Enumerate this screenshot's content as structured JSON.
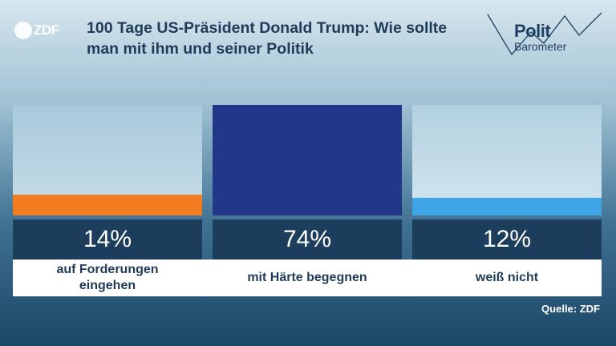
{
  "logo": {
    "text": "ZDF"
  },
  "header": {
    "title": "100 Tage US-Präsident Donald Trump: Wie sollte man mit ihm und seiner Politik",
    "brand_line1": "Polit",
    "brand_line2": "Barometer"
  },
  "chart_data": {
    "type": "bar",
    "title": "100 Tage US-Präsident Donald Trump: Wie sollte man mit ihm und seiner Politik",
    "categories": [
      "auf Forderungen eingehen",
      "mit Härte begegnen",
      "weiß nicht"
    ],
    "values": [
      14,
      74,
      12
    ],
    "value_labels": [
      "14%",
      "74%",
      "12%"
    ],
    "colors": [
      "#f47c20",
      "#22368a",
      "#3ea6e6"
    ],
    "unit": "%",
    "ylim": [
      0,
      74
    ],
    "grid": false,
    "legend": "none"
  },
  "labels": {
    "cat1_line1": "auf Forderungen",
    "cat1_line2": "eingehen",
    "cat2": "mit Härte begegnen",
    "cat3": "weiß nicht"
  },
  "footer": {
    "source": "Quelle: ZDF"
  }
}
